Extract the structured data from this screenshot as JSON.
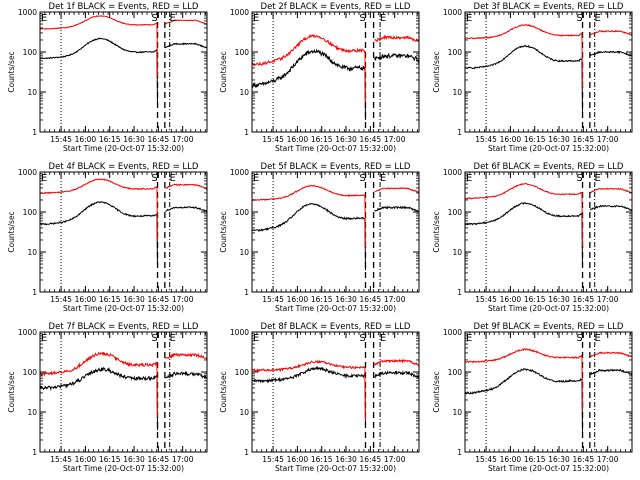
{
  "figure": {
    "x_axis": {
      "label": "Start Time (20-Oct-07 15:32:00)",
      "range_min": [
        0,
        103
      ],
      "ticks": [
        {
          "label": "15:45",
          "min": 13
        },
        {
          "label": "16:00",
          "min": 28
        },
        {
          "label": "16:15",
          "min": 43
        },
        {
          "label": "16:30",
          "min": 58
        },
        {
          "label": "16:45",
          "min": 73
        },
        {
          "label": "17:00",
          "min": 88
        }
      ]
    },
    "y_axis": {
      "label": "Counts/sec",
      "scale": "log",
      "range": [
        1,
        1000
      ],
      "ticks": [
        "1",
        "10",
        "100",
        "1000"
      ]
    },
    "markers": {
      "start": "S",
      "end": "E",
      "left_edge": "E"
    },
    "colors": {
      "events": "#000000",
      "lld": "#ff0000",
      "axis": "#000000"
    }
  },
  "chart_data": [
    {
      "type": "line",
      "title": "Det 1f BLACK = Events, RED = LLD",
      "dotted_min": 13,
      "dash_min": [
        72.5,
        77
      ],
      "dashdot_min": 80,
      "series": [
        {
          "name": "Events",
          "color": "#000000",
          "base": 70,
          "peak": 200,
          "peak_min": 37,
          "end": 100,
          "after": 160,
          "noise": 0.03
        },
        {
          "name": "LLD",
          "color": "#ff0000",
          "base": 380,
          "peak": 750,
          "peak_min": 37,
          "end": 480,
          "after": 620,
          "noise": 0.02
        }
      ]
    },
    {
      "type": "line",
      "title": "Det 2f BLACK = Events, RED = LLD",
      "dotted_min": 13,
      "dash_min": [
        70,
        75
      ],
      "dashdot_min": 79,
      "series": [
        {
          "name": "Events",
          "color": "#000000",
          "base": 15,
          "peak": 90,
          "peak_min": 38,
          "end": 40,
          "after": 80,
          "noise": 0.12
        },
        {
          "name": "LLD",
          "color": "#ff0000",
          "base": 50,
          "peak": 220,
          "peak_min": 38,
          "end": 110,
          "after": 230,
          "noise": 0.08
        }
      ]
    },
    {
      "type": "line",
      "title": "Det 3f BLACK = Events, RED = LLD",
      "dotted_min": 13,
      "dash_min": [
        72.5,
        77
      ],
      "dashdot_min": 80,
      "series": [
        {
          "name": "Events",
          "color": "#000000",
          "base": 40,
          "peak": 130,
          "peak_min": 37,
          "end": 60,
          "after": 100,
          "noise": 0.04
        },
        {
          "name": "LLD",
          "color": "#ff0000",
          "base": 220,
          "peak": 450,
          "peak_min": 37,
          "end": 260,
          "after": 330,
          "noise": 0.03
        }
      ]
    },
    {
      "type": "line",
      "title": "Det 4f BLACK = Events, RED = LLD",
      "dotted_min": 13,
      "dash_min": [
        72.5,
        77
      ],
      "dashdot_min": 80,
      "series": [
        {
          "name": "Events",
          "color": "#000000",
          "base": 50,
          "peak": 160,
          "peak_min": 37,
          "end": 80,
          "after": 130,
          "noise": 0.04
        },
        {
          "name": "LLD",
          "color": "#ff0000",
          "base": 300,
          "peak": 620,
          "peak_min": 37,
          "end": 380,
          "after": 480,
          "noise": 0.03
        }
      ]
    },
    {
      "type": "line",
      "title": "Det 5f BLACK = Events, RED = LLD",
      "dotted_min": 13,
      "dash_min": [
        70,
        75
      ],
      "dashdot_min": 79,
      "series": [
        {
          "name": "Events",
          "color": "#000000",
          "base": 35,
          "peak": 140,
          "peak_min": 37,
          "end": 70,
          "after": 130,
          "noise": 0.05
        },
        {
          "name": "LLD",
          "color": "#ff0000",
          "base": 200,
          "peak": 420,
          "peak_min": 37,
          "end": 260,
          "after": 390,
          "noise": 0.03
        }
      ]
    },
    {
      "type": "line",
      "title": "Det 6f BLACK = Events, RED = LLD",
      "dotted_min": 13,
      "dash_min": [
        72.5,
        77
      ],
      "dashdot_min": 80,
      "series": [
        {
          "name": "Events",
          "color": "#000000",
          "base": 50,
          "peak": 150,
          "peak_min": 37,
          "end": 80,
          "after": 140,
          "noise": 0.04
        },
        {
          "name": "LLD",
          "color": "#ff0000",
          "base": 220,
          "peak": 470,
          "peak_min": 37,
          "end": 280,
          "after": 380,
          "noise": 0.03
        }
      ]
    },
    {
      "type": "line",
      "title": "Det 7f BLACK = Events, RED = LLD",
      "dotted_min": 13,
      "dash_min": [
        72.5,
        77
      ],
      "dashdot_min": 80,
      "series": [
        {
          "name": "Events",
          "color": "#000000",
          "base": 40,
          "peak": 100,
          "peak_min": 38,
          "end": 70,
          "after": 90,
          "noise": 0.1
        },
        {
          "name": "LLD",
          "color": "#ff0000",
          "base": 90,
          "peak": 260,
          "peak_min": 38,
          "end": 150,
          "after": 270,
          "noise": 0.08
        }
      ]
    },
    {
      "type": "line",
      "title": "Det 8f BLACK = Events, RED = LLD",
      "dotted_min": 13,
      "dash_min": [
        70,
        75
      ],
      "dashdot_min": 79,
      "series": [
        {
          "name": "Events",
          "color": "#000000",
          "base": 60,
          "peak": 110,
          "peak_min": 40,
          "end": 80,
          "after": 95,
          "noise": 0.08
        },
        {
          "name": "LLD",
          "color": "#ff0000",
          "base": 110,
          "peak": 170,
          "peak_min": 40,
          "end": 130,
          "after": 190,
          "noise": 0.06
        }
      ]
    },
    {
      "type": "line",
      "title": "Det 9f BLACK = Events, RED = LLD",
      "dotted_min": 13,
      "dash_min": [
        72.5,
        77
      ],
      "dashdot_min": 80,
      "series": [
        {
          "name": "Events",
          "color": "#000000",
          "base": 30,
          "peak": 100,
          "peak_min": 37,
          "end": 60,
          "after": 110,
          "noise": 0.05
        },
        {
          "name": "LLD",
          "color": "#ff0000",
          "base": 180,
          "peak": 340,
          "peak_min": 37,
          "end": 230,
          "after": 300,
          "noise": 0.04
        }
      ]
    }
  ]
}
